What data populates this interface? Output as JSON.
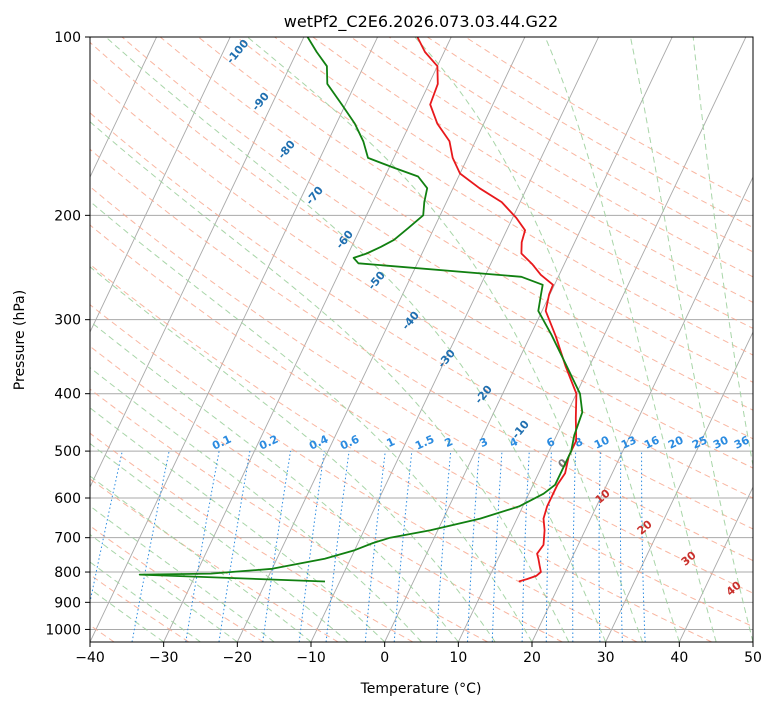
{
  "chart_data": {
    "type": "line",
    "subtype": "skew-t log-p diagram",
    "title": "wetPf2_C2E6.2026.073.03.44.G22",
    "xlabel": "Temperature (°C)",
    "ylabel": "Pressure (hPa)",
    "xlim": [
      -40,
      50
    ],
    "ylim": [
      1050,
      100
    ],
    "yscale": "log",
    "grid": true,
    "x_ticks": [
      -40,
      -30,
      -20,
      -10,
      0,
      10,
      20,
      30,
      40,
      50
    ],
    "y_ticks": [
      100,
      200,
      300,
      400,
      500,
      600,
      700,
      800,
      900,
      1000
    ],
    "colors": {
      "temperature": "#e8191c",
      "dewpoint": "#118011",
      "isotherm": "#a9a9a9",
      "dry_adiabat": "#f7a48a",
      "moist_adiabat": "#9fd09f",
      "mixing_ratio": "#2b8be0",
      "dry_label": "#1f6fb0",
      "moist_label": "#c9302c"
    },
    "series": [
      {
        "id": "temperature",
        "points": [
          [
            14.3,
            830
          ],
          [
            15.3,
            822
          ],
          [
            16.3,
            812
          ],
          [
            16.7,
            800
          ],
          [
            16.1,
            780
          ],
          [
            15.5,
            760
          ],
          [
            15.0,
            745
          ],
          [
            15.3,
            720
          ],
          [
            14.5,
            680
          ],
          [
            13.6,
            650
          ],
          [
            13.3,
            620
          ],
          [
            13.3,
            600
          ],
          [
            13.3,
            570
          ],
          [
            13.6,
            545
          ],
          [
            13.0,
            510
          ],
          [
            13.0,
            480
          ],
          [
            11.5,
            440
          ],
          [
            10.0,
            400
          ],
          [
            6.8,
            360
          ],
          [
            3.5,
            320
          ],
          [
            0.5,
            290
          ],
          [
            -0.1,
            272
          ],
          [
            -0.2,
            262
          ],
          [
            -2.5,
            252
          ],
          [
            -4.3,
            242
          ],
          [
            -6.5,
            232
          ],
          [
            -7.2,
            222
          ],
          [
            -7.5,
            212
          ],
          [
            -9.5,
            202
          ],
          [
            -12.5,
            190
          ],
          [
            -16.4,
            180
          ],
          [
            -20.0,
            170
          ],
          [
            -22.0,
            160
          ],
          [
            -23.5,
            150
          ],
          [
            -26.3,
            140
          ],
          [
            -28.5,
            130
          ],
          [
            -28.8,
            120
          ],
          [
            -30.0,
            112
          ],
          [
            -32.6,
            106
          ],
          [
            -34.6,
            100
          ]
        ]
      },
      {
        "id": "dewpoint",
        "points": [
          [
            -12.0,
            830
          ],
          [
            -37.6,
            808
          ],
          [
            -28.0,
            805
          ],
          [
            -20.0,
            790
          ],
          [
            -13.5,
            760
          ],
          [
            -10.0,
            735
          ],
          [
            -8.0,
            715
          ],
          [
            -6.0,
            700
          ],
          [
            -1.0,
            680
          ],
          [
            5.0,
            650
          ],
          [
            9.5,
            620
          ],
          [
            12.0,
            590
          ],
          [
            13.0,
            570
          ],
          [
            13.0,
            545
          ],
          [
            13.0,
            520
          ],
          [
            13.0,
            500
          ],
          [
            12.4,
            470
          ],
          [
            12.0,
            430
          ],
          [
            10.5,
            400
          ],
          [
            6.5,
            355
          ],
          [
            2.8,
            318
          ],
          [
            -0.5,
            290
          ],
          [
            -1.2,
            272
          ],
          [
            -1.6,
            262
          ],
          [
            -5.0,
            254
          ],
          [
            -28.0,
            241
          ],
          [
            -29.0,
            236
          ],
          [
            -27.5,
            232
          ],
          [
            -26.0,
            226
          ],
          [
            -24.7,
            220
          ],
          [
            -23.5,
            210
          ],
          [
            -22.3,
            200
          ],
          [
            -23.0,
            190
          ],
          [
            -23.5,
            180
          ],
          [
            -25.5,
            172
          ],
          [
            -29.5,
            166
          ],
          [
            -33.5,
            160
          ],
          [
            -35.2,
            150
          ],
          [
            -37.5,
            140
          ],
          [
            -40.5,
            130
          ],
          [
            -43.8,
            120
          ],
          [
            -45.0,
            112
          ],
          [
            -47.3,
            106
          ],
          [
            -49.5,
            100
          ]
        ]
      }
    ],
    "dry_adiabat_labels": [
      "-100",
      "-90",
      "-80",
      "-70",
      "-60",
      "-50",
      "-40",
      "-30",
      "-20",
      "-10"
    ],
    "mixing_ratio_labels": [
      "0.1",
      "0.2",
      "0.4",
      "0.6",
      "1",
      "1.5",
      "2",
      "3",
      "4",
      "6",
      "8",
      "10",
      "13",
      "16",
      "20",
      "25",
      "30",
      "36"
    ],
    "moist_adiabat_labels": [
      "0",
      "10",
      "20",
      "30",
      "40"
    ]
  }
}
